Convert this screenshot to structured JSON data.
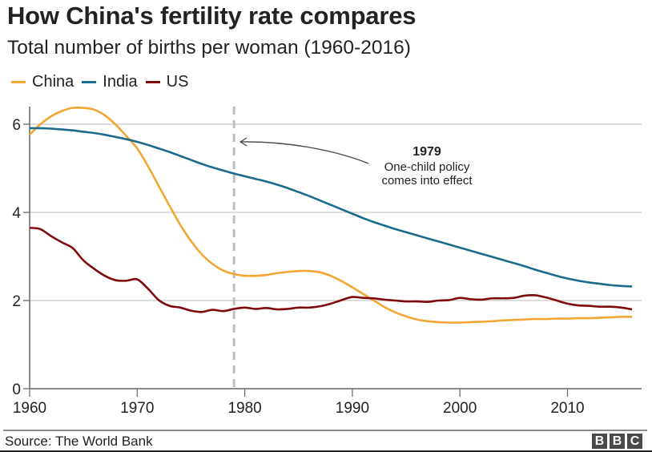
{
  "header": {
    "title": "How China's fertility rate compares",
    "subtitle": "Total number of births per woman (1960-2016)"
  },
  "footer": {
    "source": "Source: The World Bank",
    "logo_letters": [
      "B",
      "B",
      "C"
    ]
  },
  "chart_data": {
    "type": "line",
    "title": "How China's fertility rate compares",
    "subtitle": "Total number of births per woman (1960-2016)",
    "xlabel": "",
    "ylabel": "",
    "xlim": [
      1960,
      2017
    ],
    "ylim": [
      0,
      6.5
    ],
    "x_ticks": [
      1960,
      1970,
      1980,
      1990,
      2000,
      2010
    ],
    "y_ticks": [
      0,
      2,
      4,
      6
    ],
    "grid": "horizontal",
    "legend_position": "top-left",
    "x": [
      1960,
      1961,
      1962,
      1963,
      1964,
      1965,
      1966,
      1967,
      1968,
      1969,
      1970,
      1971,
      1972,
      1973,
      1974,
      1975,
      1976,
      1977,
      1978,
      1979,
      1980,
      1981,
      1982,
      1983,
      1984,
      1985,
      1986,
      1987,
      1988,
      1989,
      1990,
      1991,
      1992,
      1993,
      1994,
      1995,
      1996,
      1997,
      1998,
      1999,
      2000,
      2001,
      2002,
      2003,
      2004,
      2005,
      2006,
      2007,
      2008,
      2009,
      2010,
      2011,
      2012,
      2013,
      2014,
      2015,
      2016
    ],
    "series": [
      {
        "name": "China",
        "color": "#f2a633",
        "values": [
          5.76,
          6.0,
          6.18,
          6.3,
          6.37,
          6.37,
          6.33,
          6.2,
          5.99,
          5.73,
          5.45,
          5.05,
          4.6,
          4.15,
          3.72,
          3.35,
          3.05,
          2.83,
          2.68,
          2.6,
          2.56,
          2.56,
          2.58,
          2.62,
          2.65,
          2.67,
          2.67,
          2.64,
          2.56,
          2.44,
          2.3,
          2.15,
          2.0,
          1.85,
          1.73,
          1.64,
          1.57,
          1.53,
          1.51,
          1.5,
          1.5,
          1.51,
          1.52,
          1.53,
          1.55,
          1.56,
          1.57,
          1.58,
          1.58,
          1.59,
          1.59,
          1.6,
          1.6,
          1.61,
          1.62,
          1.63,
          1.63
        ]
      },
      {
        "name": "India",
        "color": "#1b6b8c",
        "values": [
          5.91,
          5.91,
          5.9,
          5.88,
          5.86,
          5.83,
          5.8,
          5.76,
          5.71,
          5.66,
          5.6,
          5.53,
          5.45,
          5.37,
          5.28,
          5.19,
          5.1,
          5.02,
          4.95,
          4.88,
          4.82,
          4.76,
          4.7,
          4.63,
          4.55,
          4.46,
          4.37,
          4.27,
          4.17,
          4.07,
          3.97,
          3.87,
          3.78,
          3.7,
          3.62,
          3.55,
          3.48,
          3.41,
          3.34,
          3.27,
          3.2,
          3.13,
          3.06,
          2.99,
          2.92,
          2.85,
          2.78,
          2.7,
          2.63,
          2.56,
          2.5,
          2.45,
          2.41,
          2.38,
          2.35,
          2.33,
          2.32
        ]
      },
      {
        "name": "US",
        "color": "#7f0a0d",
        "values": [
          3.65,
          3.62,
          3.46,
          3.32,
          3.19,
          2.91,
          2.72,
          2.56,
          2.46,
          2.45,
          2.48,
          2.27,
          2.01,
          1.88,
          1.84,
          1.77,
          1.74,
          1.79,
          1.76,
          1.81,
          1.84,
          1.81,
          1.83,
          1.8,
          1.81,
          1.84,
          1.84,
          1.87,
          1.93,
          2.01,
          2.08,
          2.06,
          2.05,
          2.02,
          2.0,
          1.98,
          1.98,
          1.97,
          2.0,
          2.01,
          2.06,
          2.03,
          2.02,
          2.05,
          2.05,
          2.06,
          2.11,
          2.12,
          2.07,
          2.0,
          1.93,
          1.89,
          1.88,
          1.86,
          1.86,
          1.84,
          1.8
        ]
      }
    ],
    "reference_line": {
      "x": 1979,
      "style": "dashed"
    },
    "annotation": {
      "year_label": "1979",
      "line1": "One-child policy",
      "line2": "comes into effect"
    }
  }
}
